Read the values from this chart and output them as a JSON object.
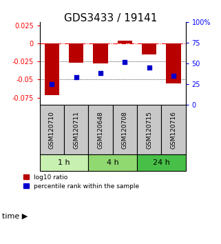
{
  "title": "GDS3433 / 19141",
  "samples": [
    "GSM120710",
    "GSM120711",
    "GSM120648",
    "GSM120708",
    "GSM120715",
    "GSM120716"
  ],
  "log10_ratio": [
    -0.072,
    -0.027,
    -0.028,
    0.004,
    -0.015,
    -0.055
  ],
  "percentile_rank": [
    25,
    33,
    38,
    52,
    45,
    35
  ],
  "groups": [
    {
      "label": "1 h",
      "indices": [
        0,
        1
      ],
      "color": "#c8f0b0"
    },
    {
      "label": "4 h",
      "indices": [
        2,
        3
      ],
      "color": "#90d870"
    },
    {
      "label": "24 h",
      "indices": [
        4,
        5
      ],
      "color": "#48c048"
    }
  ],
  "bar_color": "#b80000",
  "dot_color": "#0000cc",
  "ylim_left": [
    -0.085,
    0.03
  ],
  "ylim_right": [
    0,
    100
  ],
  "yticks_left": [
    0.025,
    0,
    -0.025,
    -0.05,
    -0.075
  ],
  "yticks_right": [
    100,
    75,
    50,
    25,
    0
  ],
  "bar_width": 0.6,
  "sample_box_color": "#c8c8c8",
  "time_label": "time",
  "legend_red": "log10 ratio",
  "legend_blue": "percentile rank within the sample",
  "title_fontsize": 11,
  "tick_fontsize": 7
}
